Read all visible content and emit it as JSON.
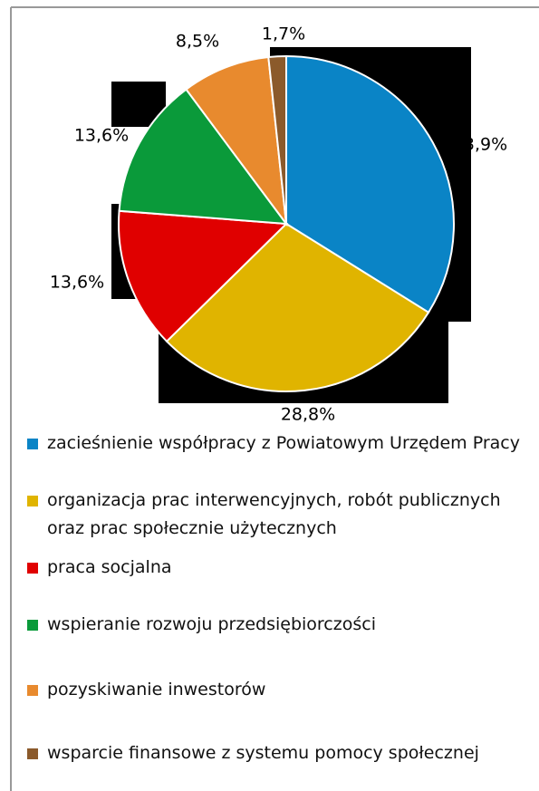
{
  "chart_data": {
    "type": "pie",
    "categories": [
      "zacieśnienie współpracy z Powiatowym Urzędem Pracy",
      "organizacja prac interwencyjnych, robót publicznych oraz prac społecznie użytecznych",
      "praca socjalna",
      "wspieranie rozwoju przedsiębiorczości",
      "pozyskiwanie inwestorów",
      "wsparcie finansowe z systemu pomocy społecznej"
    ],
    "values": [
      33.9,
      28.8,
      13.6,
      13.6,
      8.5,
      1.7
    ],
    "value_labels": [
      "33,9%",
      "28,8%",
      "13,6%",
      "13,6%",
      "8,5%",
      "1,7%"
    ],
    "colors": [
      "#0a84c6",
      "#e0b400",
      "#e00000",
      "#0a9a3a",
      "#e88a2e",
      "#8b5a2b"
    ]
  }
}
